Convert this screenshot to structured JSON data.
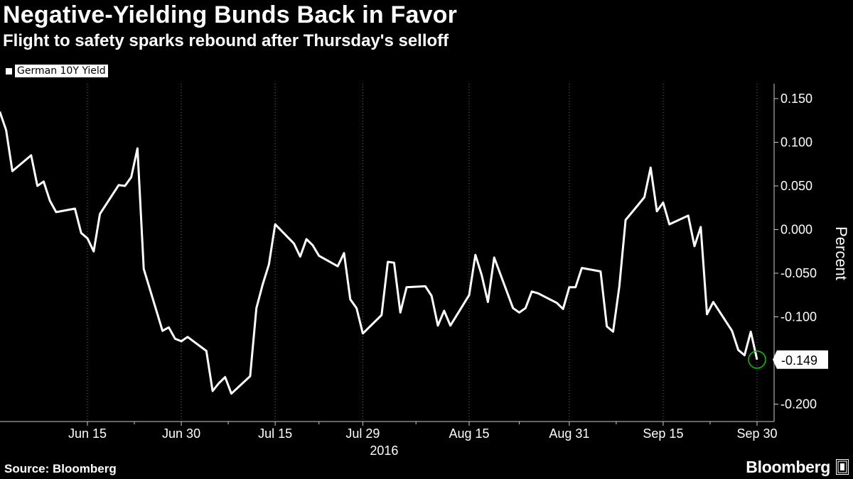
{
  "title": "Negative-Yielding Bunds Back in Favor",
  "subtitle": "Flight to safety sparks rebound after Thursday's selloff",
  "source": "Source: Bloomberg",
  "brand": "Bloomberg",
  "chart_data": {
    "type": "line",
    "title": "Negative-Yielding Bunds Back in Favor",
    "subtitle": "Flight to safety sparks rebound after Thursday's selloff",
    "ylabel": "Percent",
    "year_label": "2016",
    "ylim": [
      -0.225,
      0.175
    ],
    "yticks": [
      -0.2,
      -0.15,
      -0.1,
      -0.05,
      0.0,
      0.05,
      0.1,
      0.15
    ],
    "ytick_labels": [
      "-0.200",
      "-0.150",
      "-0.100",
      "-0.050",
      "0.000",
      "0.050",
      "0.100",
      "0.150"
    ],
    "xlim": [
      "2016-06-03",
      "2016-10-03"
    ],
    "xticks": [
      "2016-06-15",
      "2016-06-30",
      "2016-07-15",
      "2016-07-29",
      "2016-08-15",
      "2016-08-31",
      "2016-09-15",
      "2016-09-30"
    ],
    "xtick_labels": [
      "Jun 15",
      "Jun 30",
      "Jul 15",
      "Jul 29",
      "Aug 15",
      "Aug 31",
      "Sep 15",
      "Sep 30"
    ],
    "grid": "vertical-dashed",
    "legend_position": "top-left",
    "last_value_label": "-0.149",
    "colors": {
      "background": "#000000",
      "line": "#ffffff",
      "marker": "#00cc00"
    },
    "series": [
      {
        "name": "German 10Y Yield",
        "x": [
          "2016-06-01",
          "2016-06-02",
          "2016-06-03",
          "2016-06-06",
          "2016-06-07",
          "2016-06-08",
          "2016-06-09",
          "2016-06-10",
          "2016-06-13",
          "2016-06-14",
          "2016-06-15",
          "2016-06-16",
          "2016-06-17",
          "2016-06-20",
          "2016-06-21",
          "2016-06-22",
          "2016-06-23",
          "2016-06-24",
          "2016-06-27",
          "2016-06-28",
          "2016-06-29",
          "2016-06-30",
          "2016-07-01",
          "2016-07-04",
          "2016-07-05",
          "2016-07-06",
          "2016-07-07",
          "2016-07-08",
          "2016-07-11",
          "2016-07-12",
          "2016-07-13",
          "2016-07-14",
          "2016-07-15",
          "2016-07-18",
          "2016-07-19",
          "2016-07-20",
          "2016-07-21",
          "2016-07-22",
          "2016-07-25",
          "2016-07-26",
          "2016-07-27",
          "2016-07-28",
          "2016-07-29",
          "2016-08-01",
          "2016-08-02",
          "2016-08-03",
          "2016-08-04",
          "2016-08-05",
          "2016-08-08",
          "2016-08-09",
          "2016-08-10",
          "2016-08-11",
          "2016-08-12",
          "2016-08-15",
          "2016-08-16",
          "2016-08-17",
          "2016-08-18",
          "2016-08-19",
          "2016-08-22",
          "2016-08-23",
          "2016-08-24",
          "2016-08-25",
          "2016-08-26",
          "2016-08-29",
          "2016-08-30",
          "2016-08-31",
          "2016-09-01",
          "2016-09-02",
          "2016-09-05",
          "2016-09-06",
          "2016-09-07",
          "2016-09-08",
          "2016-09-09",
          "2016-09-12",
          "2016-09-13",
          "2016-09-14",
          "2016-09-15",
          "2016-09-16",
          "2016-09-19",
          "2016-09-20",
          "2016-09-21",
          "2016-09-22",
          "2016-09-23",
          "2016-09-26",
          "2016-09-27",
          "2016-09-28",
          "2016-09-29",
          "2016-09-30"
        ],
        "y": [
          0.135,
          0.114,
          0.067,
          0.085,
          0.05,
          0.055,
          0.033,
          0.02,
          0.024,
          -0.004,
          -0.01,
          -0.025,
          0.018,
          0.051,
          0.05,
          0.06,
          0.093,
          -0.045,
          -0.116,
          -0.112,
          -0.125,
          -0.128,
          -0.123,
          -0.139,
          -0.185,
          -0.176,
          -0.169,
          -0.188,
          -0.168,
          -0.09,
          -0.063,
          -0.04,
          0.006,
          -0.016,
          -0.031,
          -0.011,
          -0.018,
          -0.03,
          -0.042,
          -0.027,
          -0.08,
          -0.09,
          -0.119,
          -0.098,
          -0.037,
          -0.038,
          -0.095,
          -0.066,
          -0.065,
          -0.076,
          -0.11,
          -0.093,
          -0.11,
          -0.075,
          -0.029,
          -0.052,
          -0.083,
          -0.032,
          -0.09,
          -0.095,
          -0.09,
          -0.071,
          -0.073,
          -0.084,
          -0.091,
          -0.066,
          -0.066,
          -0.044,
          -0.048,
          -0.111,
          -0.117,
          -0.065,
          0.011,
          0.037,
          0.071,
          0.021,
          0.031,
          0.006,
          0.016,
          -0.019,
          0.003,
          -0.097,
          -0.083,
          -0.116,
          -0.138,
          -0.144,
          -0.117,
          -0.149
        ]
      }
    ]
  }
}
